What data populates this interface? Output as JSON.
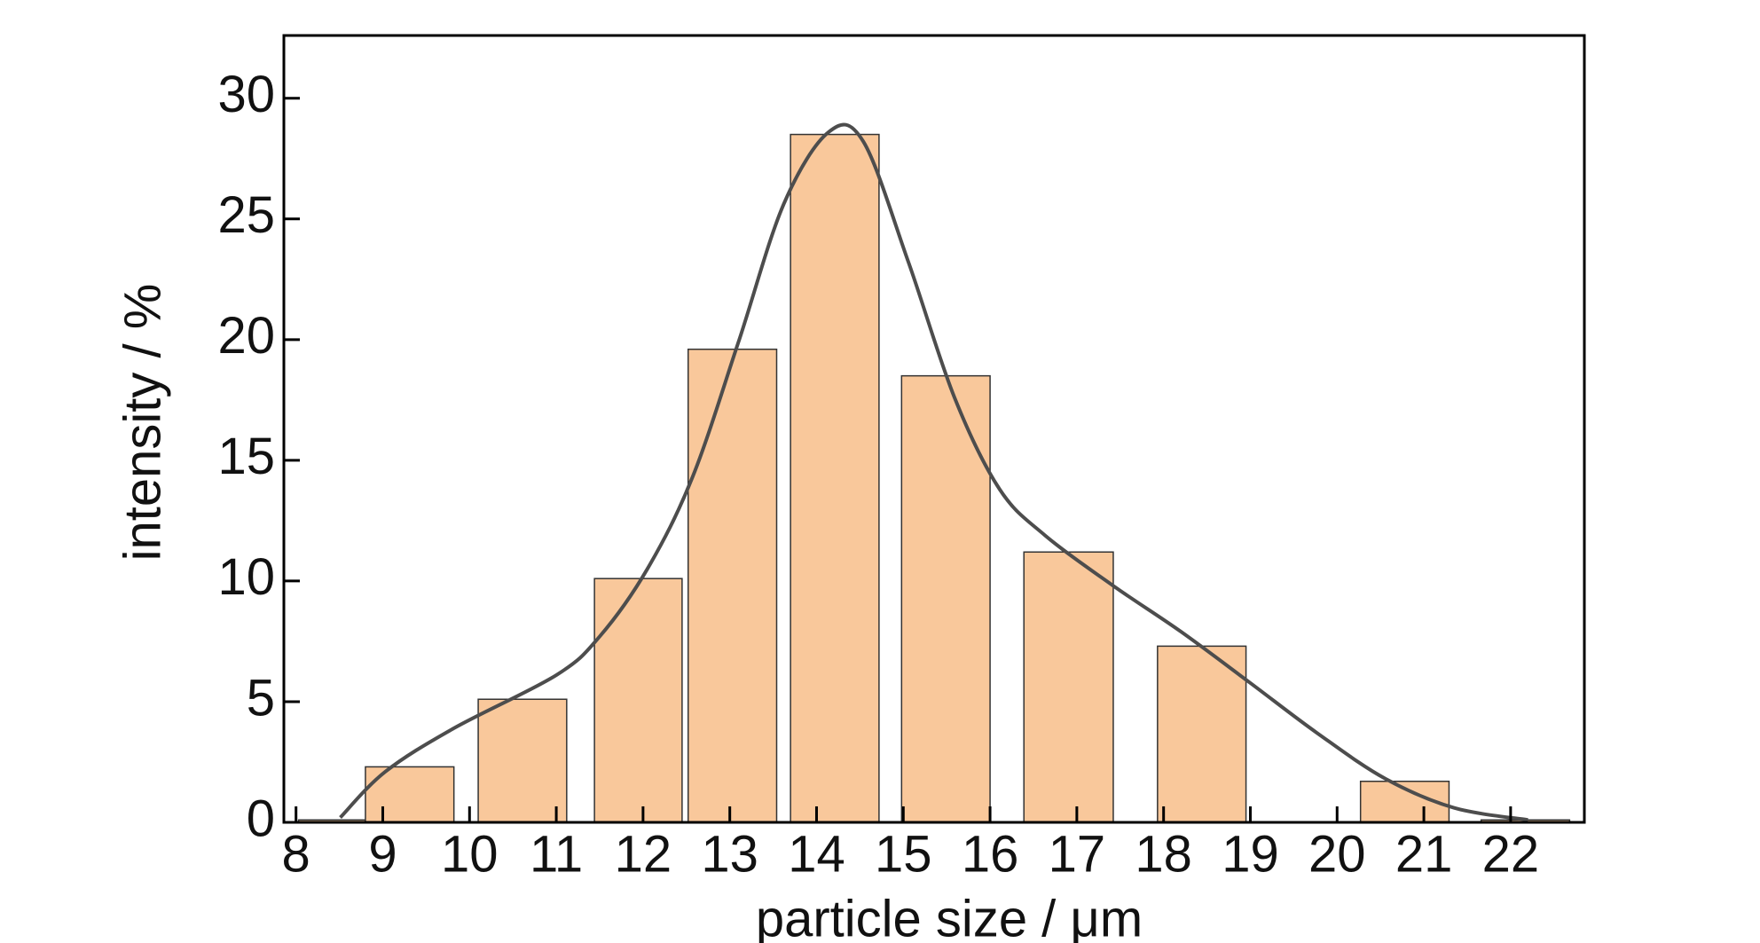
{
  "chart_data": {
    "type": "bar",
    "x_label": "particle size / μm",
    "y_label": "intensity / %",
    "x_left": [
      8.03,
      8.8,
      10.1,
      11.44,
      12.52,
      13.7,
      14.98,
      16.39,
      17.93,
      20.27,
      21.66
    ],
    "x_right": [
      8.8,
      9.82,
      11.12,
      12.45,
      13.54,
      14.72,
      16.0,
      17.42,
      18.95,
      21.29,
      22.68
    ],
    "values": [
      0.1,
      2.3,
      5.1,
      10.1,
      19.6,
      28.5,
      18.5,
      11.2,
      7.3,
      1.7,
      0.1
    ],
    "color": "#f9c89b",
    "curve": {
      "type": "line",
      "color": "#4d4d4d",
      "x": [
        8.51,
        9.03,
        9.82,
        11.0,
        11.5,
        12.05,
        12.57,
        13.1,
        13.62,
        14.14,
        14.54,
        15.06,
        15.59,
        16.11,
        16.63,
        17.42,
        18.2,
        18.99,
        19.77,
        20.56,
        21.35,
        22.2
      ],
      "values": [
        0.2,
        2.1,
        3.9,
        6.1,
        7.7,
        10.5,
        14.3,
        19.9,
        25.6,
        28.6,
        28.2,
        23.2,
        17.6,
        13.8,
        11.9,
        9.8,
        7.9,
        5.8,
        3.7,
        1.8,
        0.6,
        0.1
      ]
    },
    "xlim": [
      7.86,
      22.85
    ],
    "ylim": [
      0,
      32.6
    ],
    "xticks": [
      8,
      9,
      10,
      11,
      12,
      13,
      14,
      15,
      16,
      17,
      18,
      19,
      20,
      21,
      22
    ],
    "yticks": [
      0,
      5,
      10,
      15,
      20,
      25,
      30
    ]
  }
}
